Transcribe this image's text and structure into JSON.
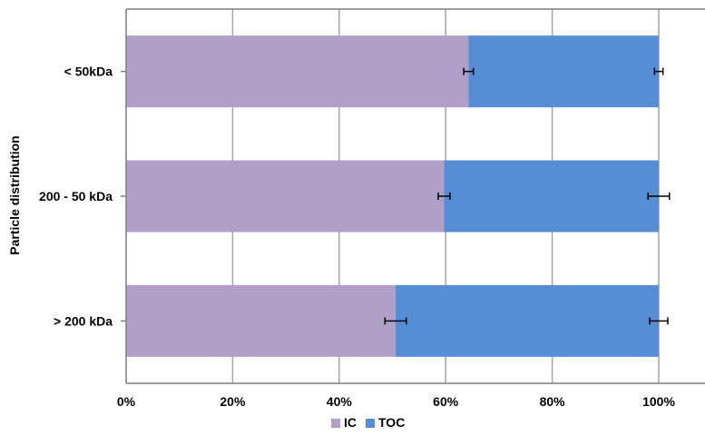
{
  "chart_data": {
    "type": "bar",
    "orientation": "horizontal",
    "stacked": true,
    "title": "",
    "xlabel": "",
    "ylabel": "Particle distribution",
    "categories": [
      "< 50kDa",
      "200 - 50 kDa",
      "> 200 kDa"
    ],
    "xlim": [
      0,
      100
    ],
    "x_ticks": [
      "0%",
      "20%",
      "40%",
      "60%",
      "80%",
      "100%"
    ],
    "x_tick_values": [
      0,
      20,
      40,
      60,
      80,
      100
    ],
    "grid": true,
    "legend_position": "bottom-center",
    "series": [
      {
        "name": "IC",
        "color": "#b09fc7",
        "values": [
          64.3,
          59.7,
          50.6
        ],
        "error": [
          0.9,
          1.1,
          2.0
        ]
      },
      {
        "name": "TOC",
        "color": "#558ed5",
        "values": [
          35.7,
          40.3,
          49.4
        ],
        "error": [
          0.8,
          2.0,
          1.7
        ]
      }
    ]
  }
}
